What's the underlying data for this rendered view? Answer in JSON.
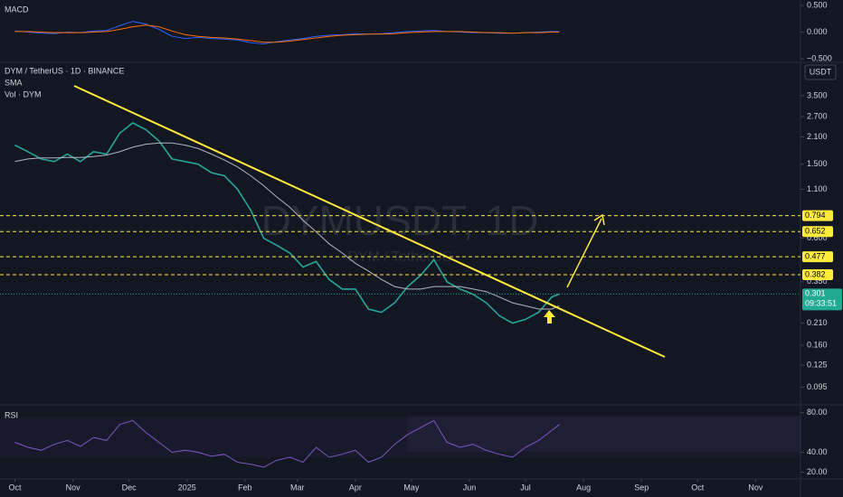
{
  "chart_data": [
    {
      "type": "line",
      "title": "DYM / TetherUS · 1D · BINANCE",
      "volume_label": "Vol · DYM",
      "currency": "USDT",
      "watermark": "DYMUSDT, 1D",
      "watermark_sub": "DYM / TetherUS",
      "log": true,
      "x": [
        0,
        7,
        14,
        21,
        28,
        35,
        42,
        49,
        56,
        63,
        70,
        77,
        84,
        91,
        98,
        105,
        112,
        119,
        126,
        133,
        140,
        147,
        154,
        161,
        168,
        175,
        182,
        189,
        196,
        203,
        210,
        217,
        224,
        231,
        238,
        245,
        252,
        259,
        266,
        273,
        280,
        287,
        291
      ],
      "series": [
        {
          "color": "#26a69a",
          "values": [
            1.9,
            1.75,
            1.6,
            1.55,
            1.7,
            1.55,
            1.75,
            1.7,
            2.2,
            2.5,
            2.3,
            2.0,
            1.6,
            1.55,
            1.5,
            1.35,
            1.3,
            1.1,
            0.85,
            0.6,
            0.55,
            0.5,
            0.42,
            0.45,
            0.36,
            0.32,
            0.32,
            0.25,
            0.24,
            0.27,
            0.33,
            0.38,
            0.46,
            0.35,
            0.32,
            0.3,
            0.27,
            0.23,
            0.21,
            0.22,
            0.24,
            0.29,
            0.301
          ]
        },
        {
          "name": "SMA",
          "color": "#b2b5be",
          "values": [
            1.55,
            1.6,
            1.62,
            1.62,
            1.63,
            1.63,
            1.65,
            1.68,
            1.75,
            1.85,
            1.92,
            1.95,
            1.95,
            1.9,
            1.82,
            1.7,
            1.58,
            1.45,
            1.3,
            1.15,
            1.0,
            0.88,
            0.75,
            0.65,
            0.56,
            0.5,
            0.44,
            0.4,
            0.36,
            0.33,
            0.32,
            0.32,
            0.33,
            0.33,
            0.33,
            0.32,
            0.31,
            0.29,
            0.27,
            0.26,
            0.25,
            0.25,
            0.26
          ]
        }
      ],
      "xlim": [
        -8,
        420
      ],
      "xticks": [
        {
          "value": 0,
          "label": "Oct"
        },
        {
          "value": 31,
          "label": "Nov"
        },
        {
          "value": 61,
          "label": "Dec"
        },
        {
          "value": 92,
          "label": "2025"
        },
        {
          "value": 123,
          "label": "Feb"
        },
        {
          "value": 151,
          "label": "Mar"
        },
        {
          "value": 182,
          "label": "Apr"
        },
        {
          "value": 212,
          "label": "May"
        },
        {
          "value": 243,
          "label": "Jun"
        },
        {
          "value": 273,
          "label": "Jul"
        },
        {
          "value": 304,
          "label": "Aug"
        },
        {
          "value": 335,
          "label": "Sep"
        },
        {
          "value": 365,
          "label": "Oct"
        },
        {
          "value": 396,
          "label": "Nov"
        }
      ],
      "ylim": [
        0.079,
        5.23
      ],
      "yticks": [
        {
          "value": 3.5,
          "label": "3.500"
        },
        {
          "value": 2.7,
          "label": "2.700"
        },
        {
          "value": 2.1,
          "label": "2.100"
        },
        {
          "value": 1.5,
          "label": "1.500"
        },
        {
          "value": 1.1,
          "label": "1.100"
        },
        {
          "value": 0.6,
          "label": "0.600"
        },
        {
          "value": 0.35,
          "label": "0.350"
        },
        {
          "value": 0.21,
          "label": "0.210"
        },
        {
          "value": 0.16,
          "label": "0.160"
        },
        {
          "value": 0.125,
          "label": "0.125"
        },
        {
          "value": 0.095,
          "label": "0.095"
        }
      ],
      "levels": [
        0.794,
        0.652,
        0.477,
        0.382
      ],
      "level_color": "#ffeb3b",
      "last": 0.301,
      "countdown": "09:33:51",
      "last_color": "#22ab94"
    },
    {
      "type": "line",
      "title": "MACD",
      "x": [
        0,
        7,
        14,
        21,
        28,
        35,
        42,
        49,
        56,
        63,
        70,
        77,
        84,
        91,
        98,
        105,
        112,
        119,
        126,
        133,
        140,
        147,
        154,
        161,
        168,
        175,
        182,
        189,
        196,
        203,
        210,
        217,
        224,
        231,
        238,
        245,
        252,
        259,
        266,
        273,
        280,
        287,
        291
      ],
      "series": [
        {
          "color": "#2962ff",
          "values": [
            0.02,
            0,
            -0.02,
            -0.03,
            0,
            -0.01,
            0.02,
            0.03,
            0.12,
            0.2,
            0.15,
            0.05,
            -0.08,
            -0.12,
            -0.1,
            -0.12,
            -0.13,
            -0.15,
            -0.2,
            -0.22,
            -0.18,
            -0.15,
            -0.12,
            -0.08,
            -0.06,
            -0.05,
            -0.03,
            -0.04,
            -0.03,
            -0.01,
            0.01,
            0.02,
            0.03,
            0.01,
            0,
            -0.01,
            -0.01,
            -0.02,
            -0.02,
            -0.01,
            0,
            0.01,
            0.01
          ]
        },
        {
          "color": "#ff6d00",
          "values": [
            0.01,
            0.01,
            0,
            -0.01,
            -0.01,
            -0.01,
            0,
            0.01,
            0.05,
            0.1,
            0.13,
            0.1,
            0.02,
            -0.05,
            -0.08,
            -0.1,
            -0.11,
            -0.13,
            -0.16,
            -0.19,
            -0.19,
            -0.17,
            -0.14,
            -0.11,
            -0.08,
            -0.06,
            -0.05,
            -0.04,
            -0.04,
            -0.03,
            -0.01,
            0,
            0.01,
            0.01,
            0.01,
            0,
            -0.01,
            -0.01,
            -0.02,
            -0.01,
            -0.01,
            0,
            0
          ]
        }
      ],
      "ylim": [
        -0.55,
        0.6
      ],
      "yticks": [
        {
          "value": 0.5,
          "label": "0.500"
        },
        {
          "value": 0,
          "label": "0.000"
        },
        {
          "value": -0.5,
          "label": "−0.500"
        }
      ]
    },
    {
      "type": "line",
      "title": "RSI",
      "x": [
        0,
        7,
        14,
        21,
        28,
        35,
        42,
        49,
        56,
        63,
        70,
        77,
        84,
        91,
        98,
        105,
        112,
        119,
        126,
        133,
        140,
        147,
        154,
        161,
        168,
        175,
        182,
        189,
        196,
        203,
        210,
        217,
        224,
        231,
        238,
        245,
        252,
        259,
        266,
        273,
        280,
        287,
        291
      ],
      "series": [
        {
          "color": "#7e57c2",
          "values": [
            50,
            45,
            42,
            48,
            52,
            46,
            55,
            52,
            68,
            72,
            60,
            50,
            40,
            42,
            40,
            36,
            38,
            30,
            28,
            25,
            32,
            35,
            30,
            45,
            35,
            38,
            42,
            30,
            35,
            48,
            58,
            65,
            72,
            50,
            45,
            48,
            42,
            38,
            35,
            45,
            52,
            62,
            68
          ]
        }
      ],
      "ylim": [
        15,
        86
      ],
      "yticks": [
        {
          "value": 80,
          "label": "80.00"
        },
        {
          "value": 40,
          "label": "40.00"
        },
        {
          "value": 20,
          "label": "20.00"
        }
      ]
    }
  ]
}
